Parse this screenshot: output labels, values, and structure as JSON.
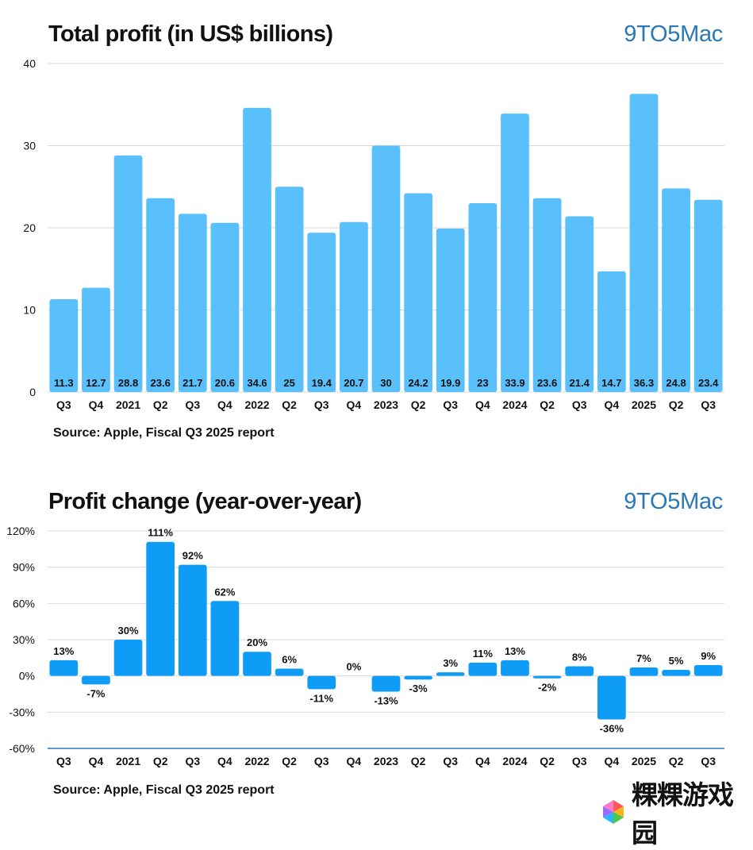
{
  "brand": "9TO5Mac",
  "watermark": "粿粿游戏园",
  "chart_data": [
    {
      "type": "bar",
      "title": "Total profit (in US$ billions)",
      "source": "Source: Apple, Fiscal Q3 2025 report",
      "categories": [
        "Q3",
        "Q4",
        "2021",
        "Q2",
        "Q3",
        "Q4",
        "2022",
        "Q2",
        "Q3",
        "Q4",
        "2023",
        "Q2",
        "Q3",
        "Q4",
        "2024",
        "Q2",
        "Q3",
        "Q4",
        "2025",
        "Q2",
        "Q3"
      ],
      "values": [
        11.3,
        12.7,
        28.8,
        23.6,
        21.7,
        20.6,
        34.6,
        25,
        19.4,
        20.7,
        30,
        24.2,
        19.9,
        23,
        33.9,
        23.6,
        21.4,
        14.7,
        36.3,
        24.8,
        23.4
      ],
      "value_labels": [
        "11.3",
        "12.7",
        "28.8",
        "23.6",
        "21.7",
        "20.6",
        "34.6",
        "25",
        "19.4",
        "20.7",
        "30",
        "24.2",
        "19.9",
        "23",
        "33.9",
        "23.6",
        "21.4",
        "14.7",
        "36.3",
        "24.8",
        "23.4"
      ],
      "ylim": [
        0,
        40
      ],
      "yticks": [
        0,
        10,
        20,
        30,
        40
      ],
      "ytick_labels": [
        "0",
        "10",
        "20",
        "30",
        "40"
      ],
      "bar_color": "#5ac0fb",
      "grid": true
    },
    {
      "type": "bar",
      "title": "Profit change (year-over-year)",
      "source": "Source: Apple, Fiscal Q3 2025 report",
      "categories": [
        "Q3",
        "Q4",
        "2021",
        "Q2",
        "Q3",
        "Q4",
        "2022",
        "Q2",
        "Q3",
        "Q4",
        "2023",
        "Q2",
        "Q3",
        "Q4",
        "2024",
        "Q2",
        "Q3",
        "Q4",
        "2025",
        "Q2",
        "Q3"
      ],
      "values": [
        13,
        -7,
        30,
        111,
        92,
        62,
        20,
        6,
        -11,
        0,
        -13,
        -3,
        3,
        11,
        13,
        -2,
        8,
        -36,
        7,
        5,
        9
      ],
      "value_labels": [
        "13%",
        "-7%",
        "30%",
        "111%",
        "92%",
        "62%",
        "20%",
        "6%",
        "-11%",
        "0%",
        "-13%",
        "-3%",
        "3%",
        "11%",
        "13%",
        "-2%",
        "8%",
        "-36%",
        "7%",
        "5%",
        "9%"
      ],
      "ylim": [
        -60,
        120
      ],
      "yticks": [
        -60,
        -30,
        0,
        30,
        60,
        90,
        120
      ],
      "ytick_labels": [
        "-60%",
        "-30%",
        "0%",
        "30%",
        "60%",
        "90%",
        "120%"
      ],
      "bar_color": "#0f9cf6",
      "grid": true
    }
  ]
}
